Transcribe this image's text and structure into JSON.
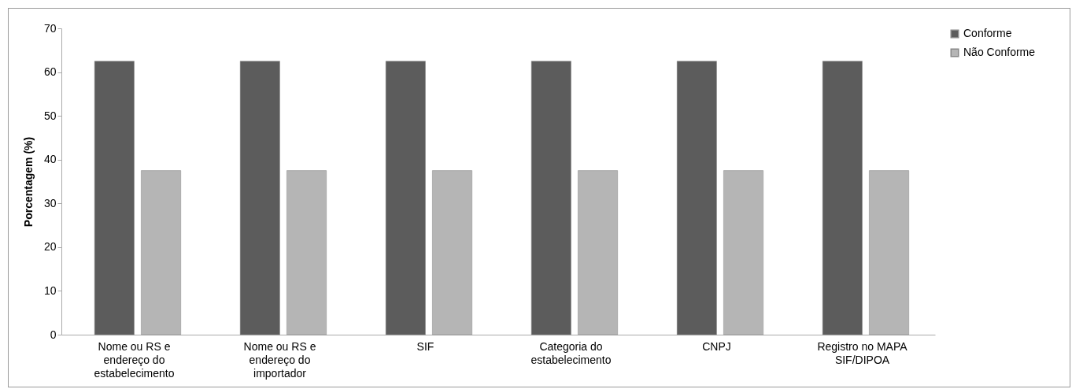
{
  "chart_data": {
    "type": "bar",
    "ylabel": "Porcentagem (%)",
    "categories": [
      "Nome ou RS e\nendereço do\nestabelecimento",
      "Nome ou RS e\nendereço do\nimportador",
      "SIF",
      "Categoria do\nestabelecimento",
      "CNPJ",
      "Registro no MAPA\nSIF/DIPOA"
    ],
    "series": [
      {
        "name": "Conforme",
        "color": "#5c5c5c",
        "values": [
          62.5,
          62.5,
          62.5,
          62.5,
          62.5,
          62.5
        ]
      },
      {
        "name": "Não Conforme",
        "color": "#b5b5b5",
        "values": [
          37.5,
          37.5,
          37.5,
          37.5,
          37.5,
          37.5
        ]
      }
    ],
    "ylim": [
      0,
      70
    ],
    "yticks": [
      0,
      10,
      20,
      30,
      40,
      50,
      60,
      70
    ],
    "grid": false,
    "legend": "right"
  }
}
